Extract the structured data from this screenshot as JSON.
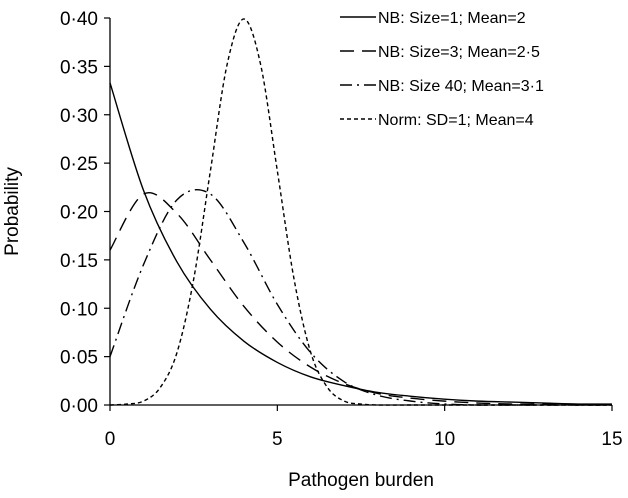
{
  "chart_data": {
    "type": "line",
    "xlabel": "Pathogen burden",
    "ylabel": "Probability",
    "xlim": [
      0,
      15
    ],
    "ylim": [
      0,
      0.4
    ],
    "x_ticks": [
      0,
      5,
      10,
      15
    ],
    "x_tick_labels": [
      "0",
      "5",
      "10",
      "15"
    ],
    "y_ticks": [
      0,
      0.05,
      0.1,
      0.15,
      0.2,
      0.25,
      0.3,
      0.35,
      0.4
    ],
    "y_tick_labels": [
      "0·00",
      "0·05",
      "0·10",
      "0·15",
      "0·20",
      "0·25",
      "0·30",
      "0·35",
      "0·40"
    ],
    "grid": false,
    "legend_position": "top-right",
    "series": [
      {
        "name": "NB: Size=1; Mean=2",
        "dash": "solid",
        "x": [
          0,
          1,
          2,
          3,
          4,
          5,
          6,
          7,
          8,
          9,
          10,
          11,
          12,
          13,
          14,
          15
        ],
        "values": [
          0.333,
          0.222,
          0.148,
          0.099,
          0.066,
          0.044,
          0.029,
          0.02,
          0.013,
          0.009,
          0.006,
          0.004,
          0.003,
          0.002,
          0.001,
          0.001
        ]
      },
      {
        "name": "NB: Size=3; Mean=2·5",
        "dash": "dashed",
        "x": [
          0,
          1,
          2,
          3,
          4,
          5,
          6,
          7,
          8,
          9,
          10,
          11,
          12,
          13,
          14,
          15
        ],
        "values": [
          0.16,
          0.218,
          0.198,
          0.15,
          0.102,
          0.065,
          0.039,
          0.022,
          0.012,
          0.007,
          0.004,
          0.002,
          0.001,
          0.001,
          0.0,
          0.0
        ]
      },
      {
        "name": "NB: Size 40; Mean=3·1",
        "dash": "dash-dot",
        "x": [
          0,
          1,
          2,
          3,
          4,
          5,
          6,
          7,
          8,
          9,
          10,
          11,
          12,
          13,
          14,
          15
        ],
        "values": [
          0.05,
          0.145,
          0.212,
          0.218,
          0.168,
          0.104,
          0.054,
          0.024,
          0.01,
          0.004,
          0.001,
          0.0,
          0.0,
          0.0,
          0.0,
          0.0
        ]
      },
      {
        "name": "Norm: SD=1; Mean=4",
        "dash": "dotted",
        "x": [
          0,
          0.5,
          1,
          1.5,
          2,
          2.5,
          3,
          3.5,
          4,
          4.5,
          5,
          5.5,
          6,
          6.5,
          7,
          7.5,
          8,
          9,
          10,
          11,
          12,
          13,
          14,
          15
        ],
        "values": [
          0.0,
          0.001,
          0.004,
          0.018,
          0.054,
          0.13,
          0.242,
          0.352,
          0.399,
          0.352,
          0.242,
          0.13,
          0.054,
          0.018,
          0.004,
          0.001,
          0.0,
          0.0,
          0.0,
          0.0,
          0.0,
          0.0,
          0.0,
          0.0
        ]
      }
    ]
  }
}
